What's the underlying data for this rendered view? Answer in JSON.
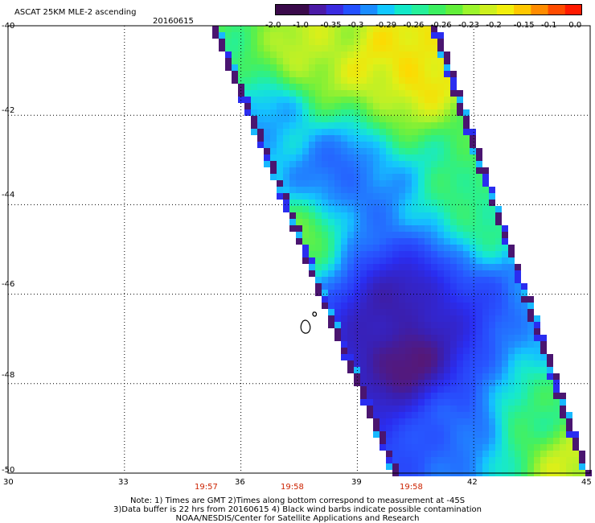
{
  "header": {
    "title": "ASCAT 25KM MLE-2 ascending",
    "date": "20160615"
  },
  "colorbar": {
    "labels": [
      "-2.0",
      "-1.0",
      "-0.35",
      "-0.3",
      "-0.29",
      "-0.26",
      "-0.26",
      "-0.23",
      "-0.2",
      "-0.15",
      "-0.1",
      "0.0"
    ],
    "colors": [
      "#3a0a4a",
      "#3a0a4a",
      "#4b1aa6",
      "#3b2be0",
      "#2450ff",
      "#1a8cff",
      "#11c8ff",
      "#12e8c8",
      "#25f09a",
      "#3cf060",
      "#62ef3a",
      "#9cf52c",
      "#cdf01e",
      "#f2ef0c",
      "#ffc800",
      "#ff8c00",
      "#ff4c00",
      "#ff1a00"
    ]
  },
  "axes": {
    "y_ticks": [
      "-40",
      "-42",
      "-44",
      "-46",
      "-48",
      "-50"
    ],
    "x_ticks": [
      "30",
      "33",
      "36",
      "39",
      "42",
      "45"
    ],
    "time_labels": [
      "19:57",
      "19:58",
      "19:58"
    ]
  },
  "notes": {
    "line1": "Note: 1) Times are GMT 2)Times along bottom correspond to measurement at -45S",
    "line2": "3)Data buffer is 22 hrs from 20160615 4) Black wind barbs indicate possible contamination",
    "line3": "NOAA/NESDIS/Center for Satellite Applications and Research"
  },
  "chart_data": {
    "type": "heatmap",
    "title": "ASCAT 25KM MLE-2 ascending",
    "subtitle": "20160615",
    "xlim": [
      30,
      45
    ],
    "ylim": [
      -50,
      -40
    ],
    "x_ticks": [
      30,
      33,
      36,
      39,
      42,
      45
    ],
    "y_ticks": [
      -40,
      -42,
      -44,
      -46,
      -48,
      -50
    ],
    "grid": true,
    "colorbar_ticks": [
      "-2.0",
      "-1.0",
      "-0.35",
      "-0.3",
      "-0.29",
      "-0.26",
      "-0.26",
      "-0.23",
      "-0.2",
      "-0.15",
      "-0.1",
      "0.0"
    ],
    "regions": [
      {
        "lon": 37.9,
        "lat": -40.7,
        "value": -0.18
      },
      {
        "lon": 39.6,
        "lat": -40.8,
        "value": -0.17
      },
      {
        "lon": 40.4,
        "lat": -40.9,
        "value": -0.15
      },
      {
        "lon": 36.9,
        "lat": -42.2,
        "value": -0.3
      },
      {
        "lon": 38.6,
        "lat": -43.3,
        "value": -0.34
      },
      {
        "lon": 37.6,
        "lat": -44.8,
        "value": -0.22
      },
      {
        "lon": 40.0,
        "lat": -46.3,
        "value": -0.5
      },
      {
        "lon": 40.3,
        "lat": -47.5,
        "value": -0.55
      },
      {
        "lon": 41.5,
        "lat": -49.0,
        "value": -0.33
      },
      {
        "lon": 43.5,
        "lat": -48.5,
        "value": -0.25
      },
      {
        "lon": 44.3,
        "lat": -49.7,
        "value": -0.18
      },
      {
        "lon": 42.0,
        "lat": -44.0,
        "value": -0.24
      }
    ]
  }
}
